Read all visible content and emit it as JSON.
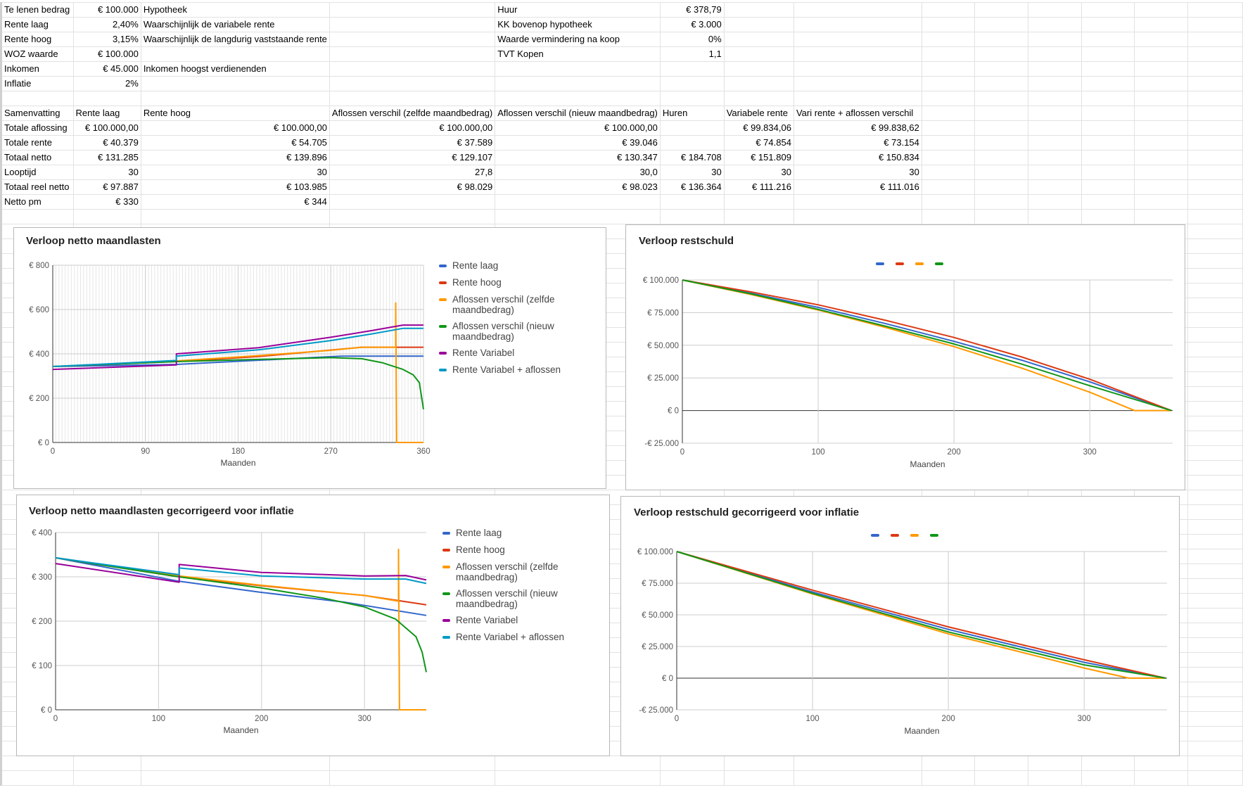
{
  "sheet": {
    "rows": [
      [
        "Te lenen bedrag",
        "€ 100.000",
        "Hypotheek",
        "",
        "Huur",
        "€ 378,79"
      ],
      [
        "Rente laag",
        "2,40%",
        "Waarschijnlijk de variabele rente",
        "",
        "KK bovenop hypotheek",
        "€ 3.000"
      ],
      [
        "Rente hoog",
        "3,15%",
        "Waarschijnlijk de langdurig vaststaande rente",
        "",
        "Waarde vermindering na koop",
        "0%"
      ],
      [
        "WOZ waarde",
        "€ 100.000",
        "",
        "",
        "TVT Kopen",
        "1,1"
      ],
      [
        "Inkomen",
        "€ 45.000",
        "Inkomen hoogst verdienenden"
      ],
      [
        "Inflatie",
        "2%"
      ],
      [],
      [
        "Samenvatting",
        "Rente laag",
        "Rente hoog",
        "Aflossen verschil (zelfde maandbedrag)",
        "Aflossen verschil (nieuw maandbedrag)",
        "Huren",
        "Variabele rente",
        "Vari rente + aflossen verschil"
      ],
      [
        "Totale aflossing",
        "€ 100.000,00",
        "€ 100.000,00",
        "€ 100.000,00",
        "€ 100.000,00",
        "",
        "€ 99.834,06",
        "€ 99.838,62"
      ],
      [
        "Totale rente",
        "€ 40.379",
        "€ 54.705",
        "€ 37.589",
        "€ 39.046",
        "",
        "€ 74.854",
        "€ 73.154"
      ],
      [
        "Totaal netto",
        "€ 131.285",
        "€ 139.896",
        "€ 129.107",
        "€ 130.347",
        "€ 184.708",
        "€ 151.809",
        "€ 150.834"
      ],
      [
        "Looptijd",
        "30",
        "30",
        "27,8",
        "30,0",
        "30",
        "30",
        "30"
      ],
      [
        "Totaal reel netto",
        "€ 97.887",
        "€ 103.985",
        "€ 98.029",
        "€ 98.023",
        "€ 136.364",
        "€ 111.216",
        "€ 111.016"
      ],
      [
        "Netto pm",
        "€ 330",
        "€ 344"
      ]
    ]
  },
  "colors": {
    "blue": "#3366cc",
    "red": "#dc3912",
    "orange": "#ff9900",
    "green": "#109618",
    "purple": "#990099",
    "cyan": "#0099c6"
  },
  "chart_data": [
    {
      "type": "line",
      "title": "Verloop netto maandlasten",
      "xlabel": "Maanden",
      "ylabel": "",
      "xlim": [
        0,
        360
      ],
      "ylim": [
        0,
        800
      ],
      "xticks": [
        0,
        90,
        180,
        270,
        360
      ],
      "yticks": [
        0,
        200,
        400,
        600,
        800
      ],
      "ytick_labels": [
        "€ 0",
        "€ 200",
        "€ 400",
        "€ 600",
        "€ 800"
      ],
      "legend": "right",
      "minor_grid": true,
      "series": [
        {
          "name": "Rente laag",
          "color": "#3366cc",
          "points": [
            [
              0,
              343
            ],
            [
              120,
              352
            ],
            [
              280,
              390
            ],
            [
              360,
              390
            ]
          ]
        },
        {
          "name": "Rente hoog",
          "color": "#dc3912",
          "points": [
            [
              0,
              343
            ],
            [
              120,
              365
            ],
            [
              200,
              388
            ],
            [
              300,
              430
            ],
            [
              360,
              430
            ]
          ]
        },
        {
          "name": "Aflossen verschil (zelfde maandbedrag)",
          "color": "#ff9900",
          "points": [
            [
              0,
              343
            ],
            [
              120,
              368
            ],
            [
              200,
              392
            ],
            [
              270,
              416
            ],
            [
              300,
              430
            ],
            [
              333,
              430
            ],
            [
              333,
              630
            ],
            [
              334,
              0
            ],
            [
              360,
              0
            ]
          ]
        },
        {
          "name": "Aflossen verschil (nieuw maandbedrag)",
          "color": "#109618",
          "points": [
            [
              0,
              343
            ],
            [
              120,
              365
            ],
            [
              200,
              375
            ],
            [
              270,
              383
            ],
            [
              300,
              378
            ],
            [
              320,
              360
            ],
            [
              340,
              330
            ],
            [
              350,
              305
            ],
            [
              356,
              270
            ],
            [
              360,
              150
            ]
          ]
        },
        {
          "name": "Rente Variabel",
          "color": "#990099",
          "points": [
            [
              0,
              330
            ],
            [
              120,
              350
            ],
            [
              120,
              400
            ],
            [
              200,
              428
            ],
            [
              270,
              475
            ],
            [
              310,
              505
            ],
            [
              340,
              530
            ],
            [
              360,
              530
            ]
          ]
        },
        {
          "name": "Rente Variabel + aflossen",
          "color": "#0099c6",
          "points": [
            [
              0,
              343
            ],
            [
              120,
              370
            ],
            [
              120,
              390
            ],
            [
              200,
              418
            ],
            [
              270,
              460
            ],
            [
              310,
              490
            ],
            [
              340,
              515
            ],
            [
              360,
              515
            ]
          ]
        }
      ]
    },
    {
      "type": "line",
      "title": "Verloop restschuld",
      "xlabel": "Maanden",
      "ylabel": "",
      "xlim": [
        0,
        361
      ],
      "ylim": [
        -25000,
        100000
      ],
      "xticks": [
        0,
        100,
        200,
        300
      ],
      "yticks": [
        -25000,
        0,
        25000,
        50000,
        75000,
        100000
      ],
      "ytick_labels": [
        "-€ 25.000",
        "€ 0",
        "€ 25.000",
        "€ 50.000",
        "€ 75.000",
        "€ 100.000"
      ],
      "legend": "top",
      "series": [
        {
          "name": "",
          "color": "#3366cc",
          "points": [
            [
              0,
              100000
            ],
            [
              50,
              90000
            ],
            [
              100,
              79000
            ],
            [
              150,
              66500
            ],
            [
              200,
              53000
            ],
            [
              250,
              38500
            ],
            [
              300,
              22000
            ],
            [
              360,
              0
            ]
          ]
        },
        {
          "name": "",
          "color": "#dc3912",
          "points": [
            [
              0,
              100000
            ],
            [
              50,
              91000
            ],
            [
              100,
              81000
            ],
            [
              150,
              69000
            ],
            [
              200,
              56000
            ],
            [
              250,
              41000
            ],
            [
              300,
              24000
            ],
            [
              360,
              0
            ]
          ]
        },
        {
          "name": "",
          "color": "#ff9900",
          "points": [
            [
              0,
              100000
            ],
            [
              50,
              89000
            ],
            [
              100,
              77000
            ],
            [
              150,
              63500
            ],
            [
              200,
              49000
            ],
            [
              250,
              32500
            ],
            [
              300,
              14000
            ],
            [
              333,
              0
            ],
            [
              360,
              0
            ]
          ]
        },
        {
          "name": "",
          "color": "#109618",
          "points": [
            [
              0,
              100000
            ],
            [
              50,
              89500
            ],
            [
              100,
              77500
            ],
            [
              150,
              64500
            ],
            [
              200,
              51000
            ],
            [
              250,
              35500
            ],
            [
              300,
              19000
            ],
            [
              360,
              0
            ]
          ]
        }
      ]
    },
    {
      "type": "line",
      "title": "Verloop netto maandlasten gecorrigeerd voor inflatie",
      "xlabel": "Maanden",
      "ylabel": "",
      "xlim": [
        0,
        360
      ],
      "ylim": [
        0,
        400
      ],
      "xticks": [
        0,
        100,
        200,
        300
      ],
      "yticks": [
        0,
        100,
        200,
        300,
        400
      ],
      "ytick_labels": [
        "€ 0",
        "€ 100",
        "€ 200",
        "€ 300",
        "€ 400"
      ],
      "legend": "right",
      "series": [
        {
          "name": "Rente laag",
          "color": "#3366cc",
          "points": [
            [
              0,
              343
            ],
            [
              120,
              290
            ],
            [
              200,
              265
            ],
            [
              280,
              243
            ],
            [
              360,
              213
            ]
          ]
        },
        {
          "name": "Rente hoog",
          "color": "#dc3912",
          "points": [
            [
              0,
              343
            ],
            [
              120,
              300
            ],
            [
              200,
              280
            ],
            [
              300,
              258
            ],
            [
              360,
              237
            ]
          ]
        },
        {
          "name": "Aflossen verschil (zelfde maandbedrag)",
          "color": "#ff9900",
          "points": [
            [
              0,
              343
            ],
            [
              120,
              302
            ],
            [
              200,
              281
            ],
            [
              300,
              258
            ],
            [
              333,
              245
            ],
            [
              333,
              362
            ],
            [
              334,
              0
            ],
            [
              360,
              0
            ]
          ]
        },
        {
          "name": "Aflossen verschil (nieuw maandbedrag)",
          "color": "#109618",
          "points": [
            [
              0,
              343
            ],
            [
              120,
              300
            ],
            [
              200,
              275
            ],
            [
              260,
              252
            ],
            [
              300,
              232
            ],
            [
              330,
              205
            ],
            [
              350,
              165
            ],
            [
              356,
              130
            ],
            [
              360,
              85
            ]
          ]
        },
        {
          "name": "Rente Variabel",
          "color": "#990099",
          "points": [
            [
              0,
              330
            ],
            [
              120,
              288
            ],
            [
              120,
              328
            ],
            [
              200,
              310
            ],
            [
              300,
              302
            ],
            [
              340,
              303
            ],
            [
              360,
              293
            ]
          ]
        },
        {
          "name": "Rente Variabel + aflossen",
          "color": "#0099c6",
          "points": [
            [
              0,
              343
            ],
            [
              120,
              305
            ],
            [
              120,
              320
            ],
            [
              200,
              302
            ],
            [
              300,
              295
            ],
            [
              340,
              295
            ],
            [
              360,
              285
            ]
          ]
        }
      ]
    },
    {
      "type": "line",
      "title": "Verloop restschuld gecorrigeerd voor inflatie",
      "xlabel": "Maanden",
      "ylabel": "",
      "xlim": [
        0,
        361
      ],
      "ylim": [
        -25000,
        100000
      ],
      "xticks": [
        0,
        100,
        200,
        300
      ],
      "yticks": [
        -25000,
        0,
        25000,
        50000,
        75000,
        100000
      ],
      "ytick_labels": [
        "-€ 25.000",
        "€ 0",
        "€ 25.000",
        "€ 50.000",
        "€ 75.000",
        "€ 100.000"
      ],
      "legend": "top",
      "series": [
        {
          "name": "",
          "color": "#3366cc",
          "points": [
            [
              0,
              100000
            ],
            [
              100,
              68000
            ],
            [
              200,
              38500
            ],
            [
              300,
              12500
            ],
            [
              360,
              0
            ]
          ]
        },
        {
          "name": "",
          "color": "#dc3912",
          "points": [
            [
              0,
              100000
            ],
            [
              100,
              69500
            ],
            [
              200,
              40500
            ],
            [
              300,
              14500
            ],
            [
              360,
              0
            ]
          ]
        },
        {
          "name": "",
          "color": "#ff9900",
          "points": [
            [
              0,
              100000
            ],
            [
              100,
              66500
            ],
            [
              200,
              35000
            ],
            [
              300,
              8000
            ],
            [
              333,
              0
            ],
            [
              360,
              0
            ]
          ]
        },
        {
          "name": "",
          "color": "#109618",
          "points": [
            [
              0,
              100000
            ],
            [
              100,
              67000
            ],
            [
              200,
              36500
            ],
            [
              300,
              10500
            ],
            [
              360,
              0
            ]
          ]
        }
      ]
    }
  ]
}
